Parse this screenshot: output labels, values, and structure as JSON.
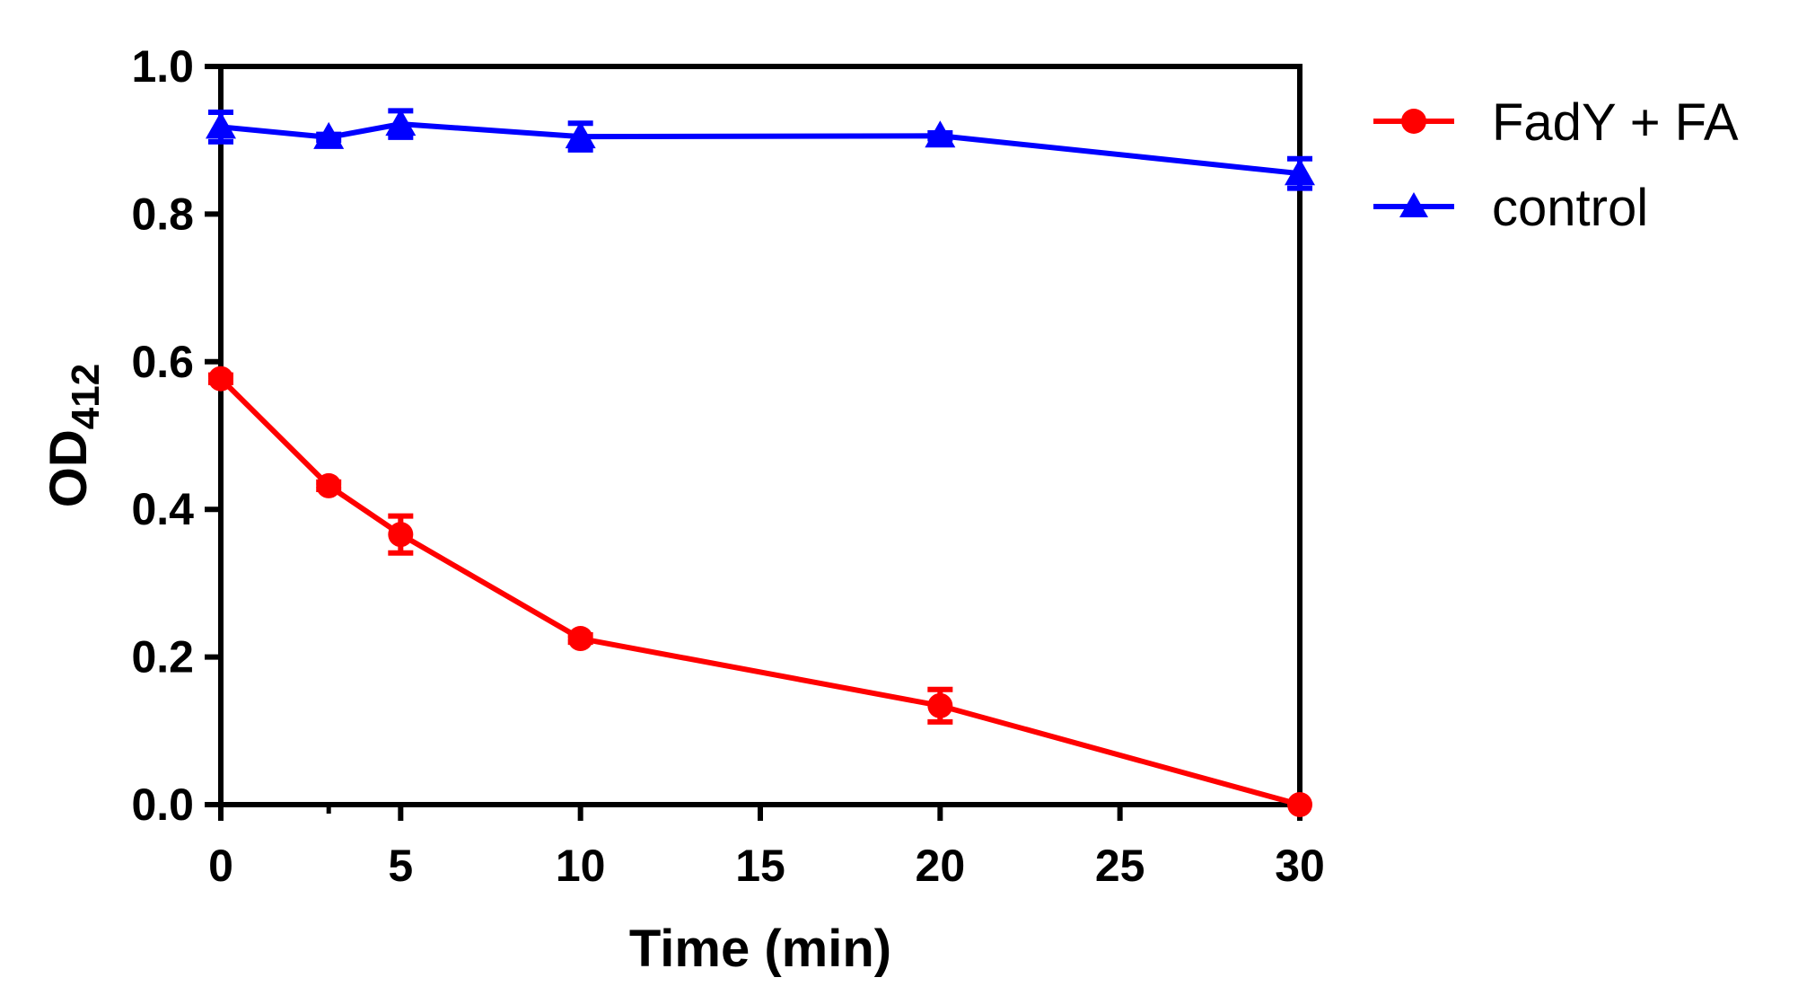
{
  "chart_data": {
    "type": "line",
    "title": "",
    "xlabel": "Time (min)",
    "ylabel": {
      "main": "OD",
      "sub": "412"
    },
    "xlim": [
      0,
      30
    ],
    "ylim": [
      0,
      1.0
    ],
    "xticks": [
      0,
      5,
      10,
      15,
      20,
      25,
      30
    ],
    "xtick_labels": [
      "0",
      "5",
      "10",
      "15",
      "20",
      "25",
      "30"
    ],
    "yticks": [
      0,
      0.2,
      0.4,
      0.6,
      0.8,
      1.0
    ],
    "ytick_labels": [
      "0.0",
      "0.2",
      "0.4",
      "0.6",
      "0.8",
      "1.0"
    ],
    "grid": false,
    "legend_position": "top-right outside",
    "series": [
      {
        "name": "FadY + FA",
        "color": "#ff0000",
        "marker": "circle",
        "x": [
          0,
          3,
          5,
          10,
          20,
          30
        ],
        "y": [
          0.577,
          0.432,
          0.366,
          0.225,
          0.134,
          0.0
        ],
        "err": [
          0.005,
          0.005,
          0.025,
          0.005,
          0.022,
          0.0
        ]
      },
      {
        "name": "control",
        "color": "#0000ff",
        "marker": "triangle",
        "x": [
          0,
          3,
          5,
          10,
          20,
          30
        ],
        "y": [
          0.918,
          0.904,
          0.922,
          0.905,
          0.906,
          0.855
        ],
        "err": [
          0.02,
          0.004,
          0.018,
          0.018,
          0.004,
          0.02
        ]
      }
    ]
  }
}
